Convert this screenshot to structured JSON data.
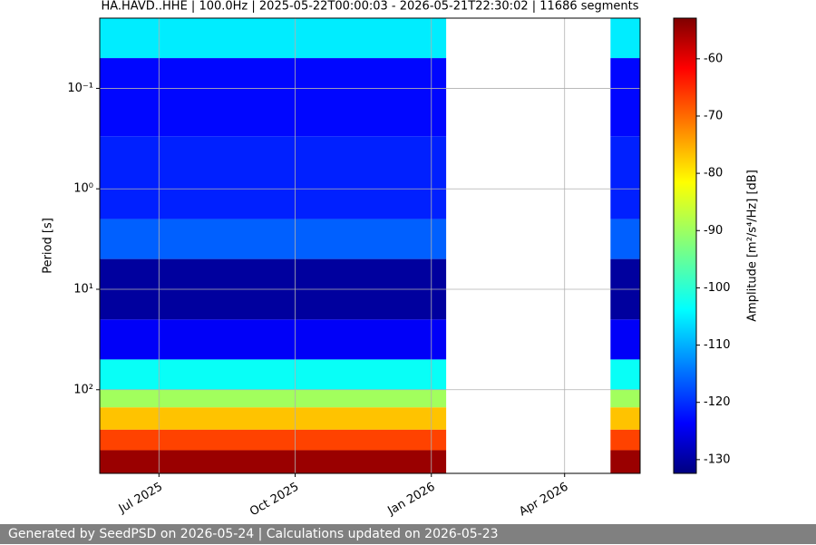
{
  "chart_data": {
    "type": "spectrogram",
    "title": "HA.HAVD..HHE | 100.0Hz | 2025-05-22T00:00:03 - 2026-05-21T22:30:02 | 11686 segments",
    "ylabel": "Period [s]",
    "colorbar_label": "Amplitude [m²/s⁴/Hz] [dB]",
    "colormap": "jet",
    "y_log": true,
    "y_inverted": true,
    "grid": true,
    "xlim": [
      "2025-05-22",
      "2026-05-22"
    ],
    "xticks": [
      {
        "value": "2025-07-01",
        "label": "Jul 2025"
      },
      {
        "value": "2025-10-01",
        "label": "Oct 2025"
      },
      {
        "value": "2026-01-01",
        "label": "Jan 2026"
      },
      {
        "value": "2026-04-01",
        "label": "Apr 2026"
      }
    ],
    "ylim": [
      0.02,
      680
    ],
    "yticks": [
      {
        "value": 0.1,
        "label": "10⁻¹"
      },
      {
        "value": 1,
        "label": "10⁰"
      },
      {
        "value": 10,
        "label": "10¹"
      },
      {
        "value": 100,
        "label": "10²"
      }
    ],
    "clim": [
      -132.4,
      -52.9
    ],
    "cticks": [
      -130,
      -120,
      -110,
      -100,
      -90,
      -80,
      -70,
      -60
    ],
    "coverage": [
      [
        "2025-05-22",
        "2026-01-11"
      ],
      [
        "2026-05-02",
        "2026-05-22"
      ]
    ],
    "period_edges": [
      0.02,
      0.05,
      0.3,
      2,
      5,
      20,
      50,
      100,
      150,
      250,
      400,
      680
    ],
    "amplitude_db": [
      -104,
      -122,
      -120,
      -115,
      -130,
      -123,
      -102,
      -90,
      -78,
      -68,
      -55
    ]
  },
  "footer": "Generated by SeedPSD on 2026-05-24 | Calculations updated on 2026-05-23"
}
